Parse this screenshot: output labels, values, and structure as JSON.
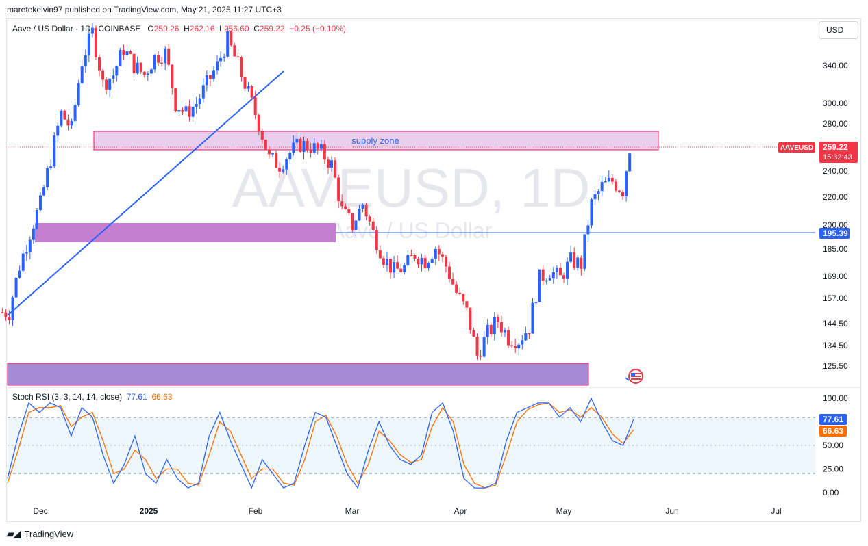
{
  "header": {
    "caption": "maretekelvin97 published on TradingView.com, May 21, 2025 11:27 UTC+3"
  },
  "legend": {
    "symbol": "Aave / US Dollar · 1D · COINBASE",
    "o_label": "O",
    "o": "259.26",
    "h_label": "H",
    "h": "262.16",
    "l_label": "L",
    "l": "256.60",
    "c_label": "C",
    "c": "259.22",
    "change": "−0.25 (−0.10%)"
  },
  "currency_button": "USD",
  "watermark": {
    "ticker": "AAVEUSD, 1D",
    "name": "Aave / US Dollar"
  },
  "annotations": {
    "supply_zone": "supply zone"
  },
  "price_axis": {
    "ticks": [
      "340.00",
      "300.00",
      "280.00",
      "240.00",
      "220.00",
      "200.00",
      "185.00",
      "169.00",
      "157.00",
      "144.50",
      "134.50",
      "125.50"
    ],
    "last_price_tag": {
      "symbol": "AAVEUSD",
      "price": "259.22",
      "countdown": "15:32:43"
    },
    "level_tag": "195.39"
  },
  "time_axis": {
    "labels": [
      "Dec",
      "2025",
      "Feb",
      "Mar",
      "Apr",
      "May",
      "Jun",
      "Jul"
    ]
  },
  "rsi": {
    "title": "Stoch RSI (3, 3, 14, 14, close)",
    "k": "77.61",
    "d": "66.63",
    "ticks": [
      "100.00",
      "75.00",
      "50.00",
      "25.00",
      "0.00"
    ]
  },
  "footer": {
    "brand": "TradingView"
  },
  "colors": {
    "up": "#2962ff",
    "down": "#f23645",
    "k_line": "#2962ff",
    "d_line": "#ff6d00",
    "supply_zone": "#e1bee7",
    "zone_border": "#e91e63",
    "demand_zone": "#ba68c8",
    "bottom_zone": "#9575cd"
  },
  "chart_data": [
    {
      "type": "candlestick",
      "title": "Aave / US Dollar · 1D · COINBASE",
      "x_labels": [
        "Dec",
        "2025",
        "Feb",
        "Mar",
        "Apr",
        "May",
        "Jun",
        "Jul"
      ],
      "ylim": [
        117,
        410
      ],
      "scale": "log",
      "last_close": 259.22,
      "zones": [
        {
          "label": "supply zone",
          "from": "2024-12-12",
          "to": "2025-05-27",
          "low": 257,
          "high": 273
        },
        {
          "label": "",
          "from": "2024-11-24",
          "to": "2025-02-25",
          "low": 189,
          "high": 200
        },
        {
          "label": "",
          "from": "2024-11-20",
          "to": "2025-05-10",
          "low": 117,
          "high": 127
        }
      ],
      "trendline": {
        "from": {
          "date": "2024-11-20",
          "price": 155
        },
        "to": {
          "date": "2025-02-16",
          "price": 352
        }
      },
      "level": 195.39,
      "series_close": [
        {
          "date": "2024-11-22",
          "close": 150
        },
        {
          "date": "2024-11-25",
          "close": 175
        },
        {
          "date": "2024-11-28",
          "close": 195
        },
        {
          "date": "2024-12-01",
          "close": 215
        },
        {
          "date": "2024-12-04",
          "close": 250
        },
        {
          "date": "2024-12-07",
          "close": 290
        },
        {
          "date": "2024-12-10",
          "close": 275
        },
        {
          "date": "2024-12-13",
          "close": 345
        },
        {
          "date": "2024-12-16",
          "close": 380
        },
        {
          "date": "2024-12-19",
          "close": 320
        },
        {
          "date": "2024-12-22",
          "close": 330
        },
        {
          "date": "2024-12-25",
          "close": 360
        },
        {
          "date": "2024-12-28",
          "close": 340
        },
        {
          "date": "2024-12-31",
          "close": 330
        },
        {
          "date": "2025-01-03",
          "close": 350
        },
        {
          "date": "2025-01-06",
          "close": 355
        },
        {
          "date": "2025-01-09",
          "close": 300
        },
        {
          "date": "2025-01-12",
          "close": 290
        },
        {
          "date": "2025-01-15",
          "close": 300
        },
        {
          "date": "2025-01-18",
          "close": 320
        },
        {
          "date": "2025-01-21",
          "close": 340
        },
        {
          "date": "2025-01-24",
          "close": 370
        },
        {
          "date": "2025-01-27",
          "close": 340
        },
        {
          "date": "2025-01-30",
          "close": 310
        },
        {
          "date": "2025-02-02",
          "close": 280
        },
        {
          "date": "2025-02-05",
          "close": 250
        },
        {
          "date": "2025-02-08",
          "close": 245
        },
        {
          "date": "2025-02-11",
          "close": 255
        },
        {
          "date": "2025-02-14",
          "close": 262
        },
        {
          "date": "2025-02-17",
          "close": 260
        },
        {
          "date": "2025-02-20",
          "close": 255
        },
        {
          "date": "2025-02-23",
          "close": 245
        },
        {
          "date": "2025-02-26",
          "close": 210
        },
        {
          "date": "2025-03-01",
          "close": 200
        },
        {
          "date": "2025-03-04",
          "close": 215
        },
        {
          "date": "2025-03-07",
          "close": 195
        },
        {
          "date": "2025-03-10",
          "close": 180
        },
        {
          "date": "2025-03-13",
          "close": 172
        },
        {
          "date": "2025-03-16",
          "close": 174
        },
        {
          "date": "2025-03-19",
          "close": 182
        },
        {
          "date": "2025-03-22",
          "close": 178
        },
        {
          "date": "2025-03-25",
          "close": 186
        },
        {
          "date": "2025-03-28",
          "close": 175
        },
        {
          "date": "2025-03-31",
          "close": 160
        },
        {
          "date": "2025-04-03",
          "close": 150
        },
        {
          "date": "2025-04-06",
          "close": 130
        },
        {
          "date": "2025-04-09",
          "close": 140
        },
        {
          "date": "2025-04-12",
          "close": 146
        },
        {
          "date": "2025-04-15",
          "close": 138
        },
        {
          "date": "2025-04-18",
          "close": 137
        },
        {
          "date": "2025-04-21",
          "close": 143
        },
        {
          "date": "2025-04-24",
          "close": 168
        },
        {
          "date": "2025-04-27",
          "close": 172
        },
        {
          "date": "2025-04-30",
          "close": 168
        },
        {
          "date": "2025-05-03",
          "close": 178
        },
        {
          "date": "2025-05-06",
          "close": 176
        },
        {
          "date": "2025-05-09",
          "close": 215
        },
        {
          "date": "2025-05-12",
          "close": 228
        },
        {
          "date": "2025-05-15",
          "close": 232
        },
        {
          "date": "2025-05-18",
          "close": 225
        },
        {
          "date": "2025-05-20",
          "close": 259.22
        }
      ]
    },
    {
      "type": "line",
      "title": "Stoch RSI (3, 3, 14, 14, close)",
      "ylim": [
        0,
        100
      ],
      "bands": [
        20,
        80
      ],
      "series": [
        {
          "name": "K",
          "values": [
            15,
            60,
            95,
            85,
            95,
            90,
            60,
            90,
            80,
            40,
            10,
            30,
            60,
            20,
            10,
            35,
            15,
            5,
            10,
            60,
            85,
            55,
            30,
            5,
            35,
            20,
            5,
            10,
            50,
            85,
            80,
            50,
            20,
            5,
            45,
            75,
            50,
            35,
            30,
            40,
            85,
            95,
            65,
            15,
            5,
            5,
            10,
            55,
            85,
            90,
            95,
            95,
            80,
            90,
            75,
            100,
            75,
            55,
            50,
            77.61
          ]
        },
        {
          "name": "D",
          "values": [
            10,
            45,
            85,
            90,
            90,
            92,
            70,
            80,
            85,
            55,
            20,
            25,
            45,
            35,
            15,
            25,
            25,
            10,
            8,
            40,
            75,
            65,
            40,
            15,
            25,
            25,
            10,
            8,
            35,
            75,
            82,
            60,
            30,
            10,
            30,
            65,
            55,
            40,
            32,
            35,
            70,
            90,
            75,
            30,
            10,
            5,
            8,
            40,
            75,
            88,
            93,
            95,
            85,
            88,
            80,
            90,
            80,
            62,
            52,
            66.63
          ]
        }
      ]
    }
  ]
}
